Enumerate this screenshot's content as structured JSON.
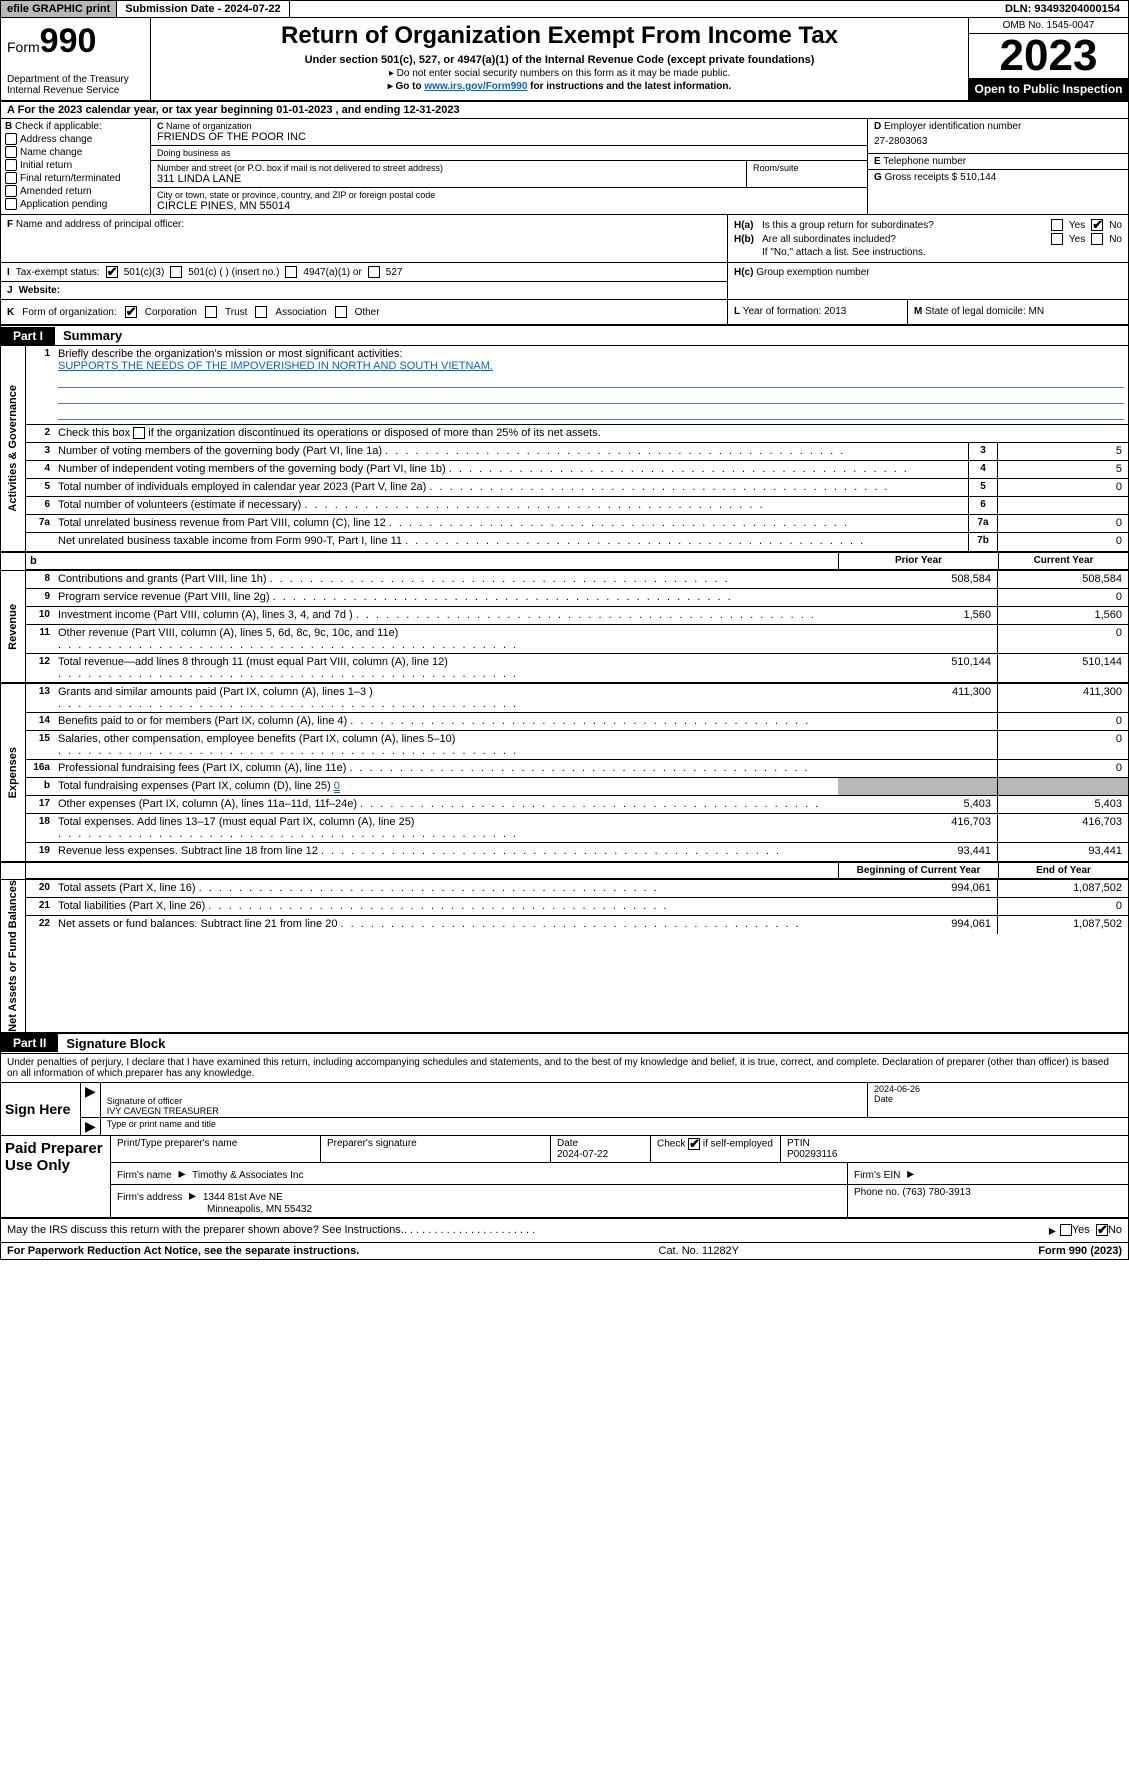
{
  "topbar": {
    "efile": "efile GRAPHIC print",
    "submission": "Submission Date - 2024-07-22",
    "dln": "DLN: 93493204000154"
  },
  "header": {
    "form_prefix": "Form",
    "form_number": "990",
    "dept": "Department of the Treasury",
    "irs": "Internal Revenue Service",
    "title": "Return of Organization Exempt From Income Tax",
    "sub1": "Under section 501(c), 527, or 4947(a)(1) of the Internal Revenue Code (except private foundations)",
    "sub2": "Do not enter social security numbers on this form as it may be made public.",
    "sub3a": "Go to ",
    "sub3_link": "www.irs.gov/Form990",
    "sub3b": " for instructions and the latest information.",
    "omb": "OMB No. 1545-0047",
    "year": "2023",
    "open": "Open to Public Inspection"
  },
  "row_a": "For the 2023 calendar year, or tax year beginning 01-01-2023    , and ending 12-31-2023",
  "col_b": {
    "label": "Check if applicable:",
    "items": [
      "Address change",
      "Name change",
      "Initial return",
      "Final return/terminated",
      "Amended return",
      "Application pending"
    ]
  },
  "col_c": {
    "name_lbl": "Name of organization",
    "name": "FRIENDS OF THE POOR INC",
    "dba_lbl": "Doing business as",
    "dba": "",
    "street_lbl": "Number and street (or P.O. box if mail is not delivered to street address)",
    "street": "311 LINDA LANE",
    "room_lbl": "Room/suite",
    "room": "",
    "city_lbl": "City or town, state or province, country, and ZIP or foreign postal code",
    "city": "CIRCLE PINES, MN  55014"
  },
  "col_d": {
    "d_lbl": "Employer identification number",
    "ein": "27-2803063",
    "e_lbl": "Telephone number",
    "phone": "",
    "g_lbl": "Gross receipts $",
    "gross": "510,144"
  },
  "row_f": {
    "lbl": "Name and address of principal officer:",
    "val": ""
  },
  "row_h": {
    "ha_lbl": "Is this a group return for subordinates?",
    "hb_lbl": "Are all subordinates included?",
    "hb_note": "If \"No,\" attach a list. See instructions.",
    "hc_lbl": "Group exemption number",
    "yes": "Yes",
    "no": "No"
  },
  "row_i": {
    "lbl": "Tax-exempt status:",
    "opt1": "501(c)(3)",
    "opt2": "501(c) (  ) (insert no.)",
    "opt3": "4947(a)(1) or",
    "opt4": "527"
  },
  "row_j": {
    "lbl": "Website:",
    "val": ""
  },
  "row_k": {
    "lbl": "Form of organization:",
    "opts": [
      "Corporation",
      "Trust",
      "Association",
      "Other"
    ]
  },
  "row_l": {
    "lbl": "Year of formation:",
    "val": "2013"
  },
  "row_m": {
    "lbl": "State of legal domicile:",
    "val": "MN"
  },
  "part1": {
    "hdr": "Part I",
    "title": "Summary"
  },
  "summary": {
    "tabs": [
      "Activities & Governance",
      "Revenue",
      "Expenses",
      "Net Assets or Fund Balances"
    ],
    "line1_lbl": "Briefly describe the organization's mission or most significant activities:",
    "line1_val": "SUPPORTS THE NEEDS OF THE IMPOVERISHED IN NORTH AND SOUTH VIETNAM.",
    "line2_a": "Check this box ",
    "line2_b": " if the organization discontinued its operations or disposed of more than 25% of its net assets.",
    "gov_rows": [
      {
        "n": "3",
        "d": "Number of voting members of the governing body (Part VI, line 1a)",
        "ln": "3",
        "v": "5"
      },
      {
        "n": "4",
        "d": "Number of independent voting members of the governing body (Part VI, line 1b)",
        "ln": "4",
        "v": "5"
      },
      {
        "n": "5",
        "d": "Total number of individuals employed in calendar year 2023 (Part V, line 2a)",
        "ln": "5",
        "v": "0"
      },
      {
        "n": "6",
        "d": "Total number of volunteers (estimate if necessary)",
        "ln": "6",
        "v": ""
      },
      {
        "n": "7a",
        "d": "Total unrelated business revenue from Part VIII, column (C), line 12",
        "ln": "7a",
        "v": "0"
      },
      {
        "n": "",
        "d": "Net unrelated business taxable income from Form 990-T, Part I, line 11",
        "ln": "7b",
        "v": "0"
      }
    ],
    "col_prior": "Prior Year",
    "col_current": "Current Year",
    "rev_rows": [
      {
        "n": "8",
        "d": "Contributions and grants (Part VIII, line 1h)",
        "p": "508,584",
        "c": "508,584"
      },
      {
        "n": "9",
        "d": "Program service revenue (Part VIII, line 2g)",
        "p": "",
        "c": "0"
      },
      {
        "n": "10",
        "d": "Investment income (Part VIII, column (A), lines 3, 4, and 7d )",
        "p": "1,560",
        "c": "1,560"
      },
      {
        "n": "11",
        "d": "Other revenue (Part VIII, column (A), lines 5, 6d, 8c, 9c, 10c, and 11e)",
        "p": "",
        "c": "0"
      },
      {
        "n": "12",
        "d": "Total revenue—add lines 8 through 11 (must equal Part VIII, column (A), line 12)",
        "p": "510,144",
        "c": "510,144"
      }
    ],
    "exp_rows": [
      {
        "n": "13",
        "d": "Grants and similar amounts paid (Part IX, column (A), lines 1–3 )",
        "p": "411,300",
        "c": "411,300"
      },
      {
        "n": "14",
        "d": "Benefits paid to or for members (Part IX, column (A), line 4)",
        "p": "",
        "c": "0"
      },
      {
        "n": "15",
        "d": "Salaries, other compensation, employee benefits (Part IX, column (A), lines 5–10)",
        "p": "",
        "c": "0"
      },
      {
        "n": "16a",
        "d": "Professional fundraising fees (Part IX, column (A), line 11e)",
        "p": "",
        "c": "0"
      }
    ],
    "line_b_a": "Total fundraising expenses (Part IX, column (D), line 25) ",
    "line_b_v": "0",
    "exp_rows2": [
      {
        "n": "17",
        "d": "Other expenses (Part IX, column (A), lines 11a–11d, 11f–24e)",
        "p": "5,403",
        "c": "5,403"
      },
      {
        "n": "18",
        "d": "Total expenses. Add lines 13–17 (must equal Part IX, column (A), line 25)",
        "p": "416,703",
        "c": "416,703"
      },
      {
        "n": "19",
        "d": "Revenue less expenses. Subtract line 18 from line 12",
        "p": "93,441",
        "c": "93,441"
      }
    ],
    "col_begin": "Beginning of Current Year",
    "col_end": "End of Year",
    "net_rows": [
      {
        "n": "20",
        "d": "Total assets (Part X, line 16)",
        "p": "994,061",
        "c": "1,087,502"
      },
      {
        "n": "21",
        "d": "Total liabilities (Part X, line 26)",
        "p": "",
        "c": "0"
      },
      {
        "n": "22",
        "d": "Net assets or fund balances. Subtract line 21 from line 20",
        "p": "994,061",
        "c": "1,087,502"
      }
    ]
  },
  "part2": {
    "hdr": "Part II",
    "title": "Signature Block"
  },
  "sig": {
    "decl": "Under penalties of perjury, I declare that I have examined this return, including accompanying schedules and statements, and to the best of my knowledge and belief, it is true, correct, and complete. Declaration of preparer (other than officer) is based on all information of which preparer has any knowledge.",
    "sign_here": "Sign Here",
    "sig_officer": "Signature of officer",
    "officer": "IVY CAVEGN  TREASURER",
    "type_name": "Type or print name and title",
    "date_lbl": "Date",
    "date": "2024-06-26"
  },
  "paid": {
    "label": "Paid Preparer Use Only",
    "h1": "Print/Type preparer's name",
    "h2": "Preparer's signature",
    "h3": "Date",
    "h3v": "2024-07-22",
    "h4": "Check         if self-employed",
    "h5": "PTIN",
    "ptin": "P00293116",
    "firm_name_lbl": "Firm's name",
    "firm_name": "Timothy & Associates Inc",
    "firm_ein_lbl": "Firm's EIN",
    "firm_ein": "",
    "firm_addr_lbl": "Firm's address",
    "firm_addr1": "1344 81st Ave NE",
    "firm_addr2": "Minneapolis, MN  55432",
    "phone_lbl": "Phone no.",
    "phone": "(763) 780-3913"
  },
  "discuss": {
    "txt": "May the IRS discuss this return with the preparer shown above? See Instructions.",
    "yes": "Yes",
    "no": "No"
  },
  "footer": {
    "left": "For Paperwork Reduction Act Notice, see the separate instructions.",
    "mid": "Cat. No. 11282Y",
    "right_a": "Form ",
    "right_b": "990",
    "right_c": " (2023)"
  },
  "letters": {
    "A": "A",
    "B": "B",
    "C": "C",
    "D": "D",
    "E": "E",
    "F": "F",
    "G": "G",
    "H_a": "H(a)",
    "H_b": "H(b)",
    "H_c": "H(c)",
    "I": "I",
    "J": "J",
    "K": "K",
    "L": "L",
    "M": "M",
    "b": "b",
    "arrow": "▶",
    "arrow_sm": "▸"
  }
}
